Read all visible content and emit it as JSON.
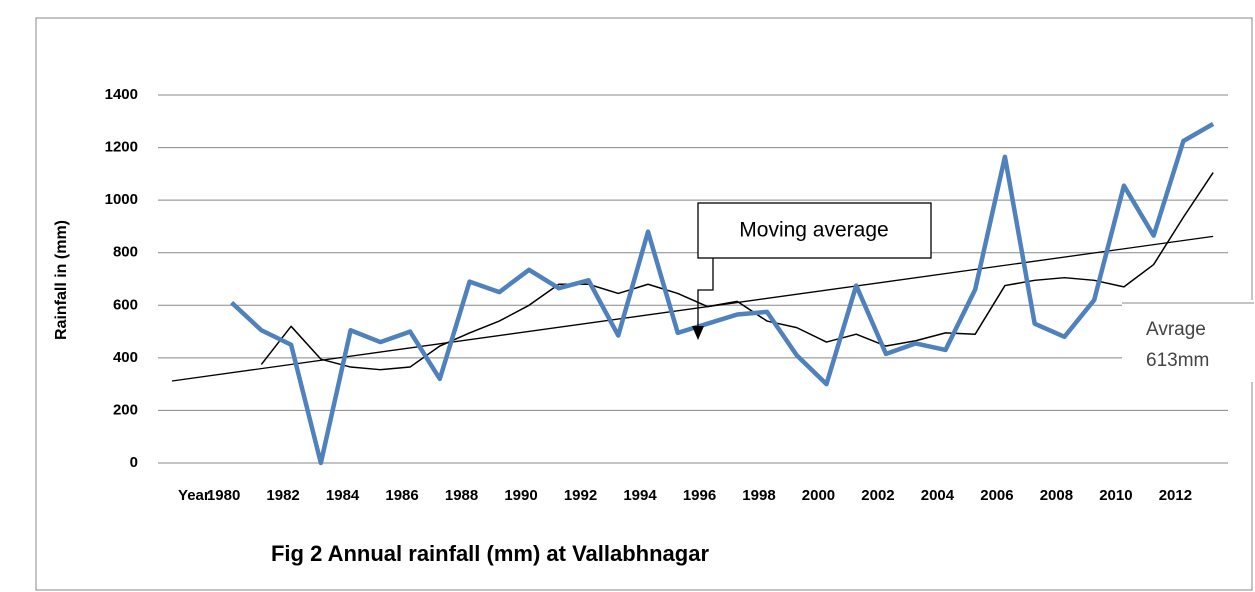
{
  "chart_data": {
    "type": "line",
    "title": "Fig 2 Annual rainfall (mm) at Vallabhnagar",
    "y_label": "Rainfall in (mm)",
    "categories": [
      "Year",
      "1980",
      null,
      "1982",
      null,
      "1984",
      null,
      "1986",
      null,
      "1988",
      null,
      "1990",
      null,
      "1992",
      null,
      "1994",
      null,
      "1996",
      null,
      "1998",
      null,
      "2000",
      null,
      "2002",
      null,
      "2004",
      null,
      "2006",
      null,
      "2008",
      null,
      "2010",
      null,
      "2012",
      null
    ],
    "series": [
      {
        "color": "#4f81bd",
        "width": 4.5,
        "values": [
          null,
          610,
          505,
          450,
          0,
          505,
          460,
          500,
          320,
          690,
          650,
          735,
          665,
          695,
          485,
          880,
          495,
          530,
          565,
          575,
          410,
          300,
          675,
          415,
          455,
          430,
          660,
          1165,
          530,
          480,
          620,
          1055,
          865,
          1225,
          1290
        ]
      },
      {
        "color": "#000000",
        "width": 1.5,
        "values": [
          null,
          null,
          375,
          520,
          395,
          365,
          355,
          365,
          445,
          495,
          540,
          600,
          680,
          680,
          645,
          680,
          645,
          595,
          615,
          540,
          515,
          460,
          490,
          445,
          465,
          495,
          490,
          675,
          695,
          705,
          695,
          670,
          755,
          935,
          1105
        ]
      }
    ],
    "trend": {
      "color": "#000000",
      "values": [
        312,
        862
      ]
    },
    "ylim": [
      0,
      1400
    ],
    "yticks": [
      0,
      200,
      400,
      600,
      800,
      1000,
      1200,
      1400
    ],
    "grid": true,
    "annotations": [
      {
        "text": "Moving average"
      },
      {
        "lines": [
          "Avrage",
          "613mm"
        ]
      }
    ]
  }
}
